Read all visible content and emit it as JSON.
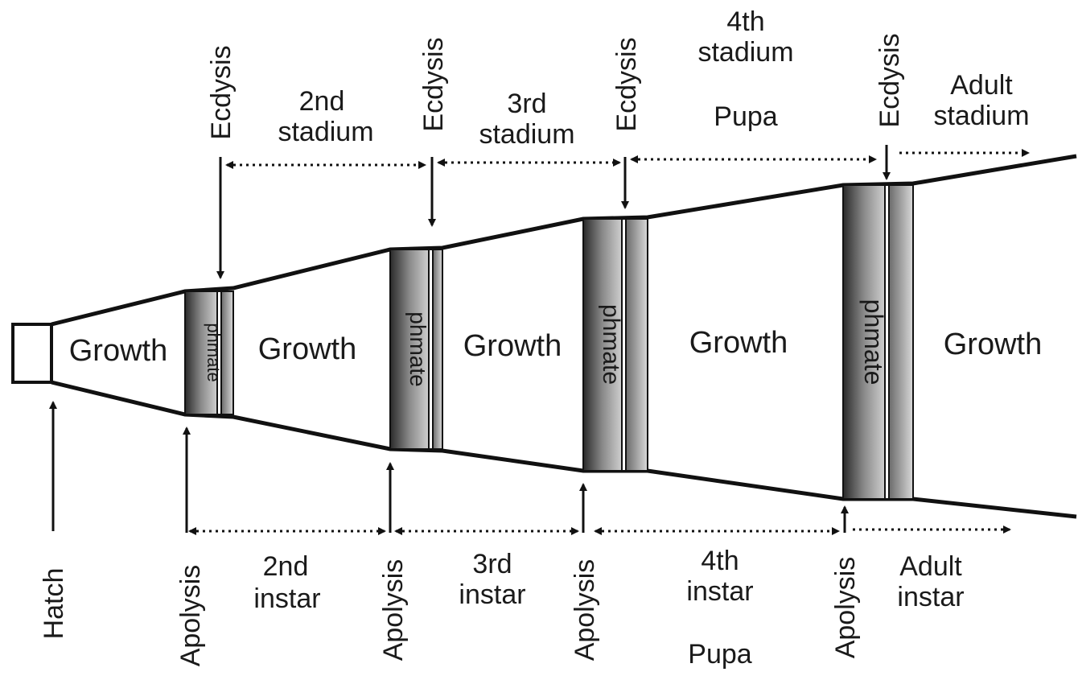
{
  "growth_label": "Growth",
  "band_label": "phmate",
  "hatch_label": "Hatch",
  "ecdysis_label": "Ecdysis",
  "apolysis_label": "Apolysis",
  "stadia": {
    "s2": [
      "2nd",
      "stadium"
    ],
    "s3": [
      "3rd",
      "stadium"
    ],
    "s4": [
      "4th",
      "stadium"
    ],
    "s4_sub": "Pupa",
    "adult": [
      "Adult",
      "stadium"
    ]
  },
  "instars": {
    "i2": [
      "2nd",
      "instar"
    ],
    "i3": [
      "3rd",
      "instar"
    ],
    "i4": [
      "4th",
      "instar"
    ],
    "i4_sub": "Pupa",
    "adult": [
      "Adult",
      "instar"
    ]
  }
}
